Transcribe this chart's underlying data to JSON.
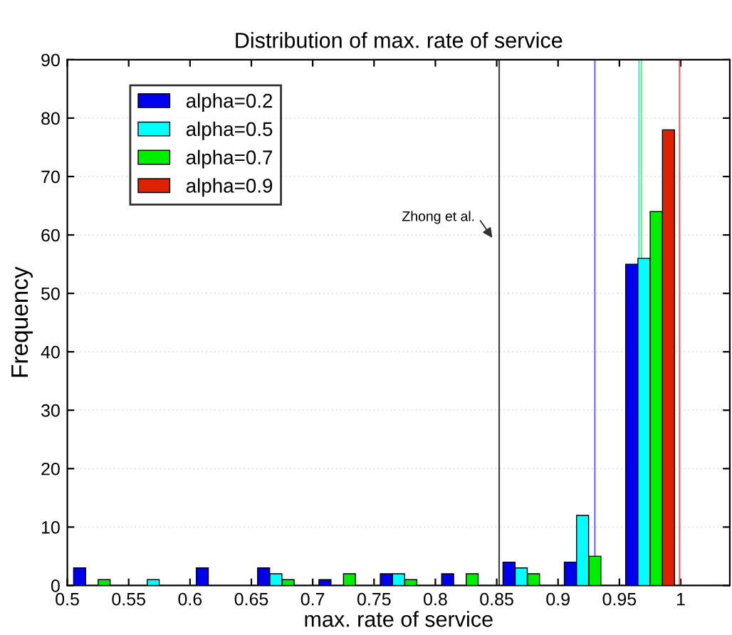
{
  "chart_data": {
    "type": "bar",
    "title": "Distribution of max. rate of service",
    "xlabel": "max. rate of service",
    "ylabel": "Frequency",
    "series": [
      {
        "name": "alpha=0.2",
        "color": "#0000ee",
        "x": [
          0.51,
          0.61,
          0.66,
          0.71,
          0.76,
          0.81,
          0.86,
          0.91,
          0.96
        ],
        "values": [
          3,
          3,
          3,
          1,
          2,
          2,
          4,
          4,
          55
        ]
      },
      {
        "name": "alpha=0.5",
        "color": "#00ffff",
        "x": [
          0.57,
          0.67,
          0.77,
          0.87,
          0.92,
          0.97
        ],
        "values": [
          1,
          2,
          2,
          3,
          12,
          56
        ]
      },
      {
        "name": "alpha=0.7",
        "color": "#00ee00",
        "x": [
          0.53,
          0.68,
          0.73,
          0.78,
          0.83,
          0.88,
          0.93,
          0.98
        ],
        "values": [
          1,
          1,
          2,
          1,
          2,
          2,
          5,
          64
        ]
      },
      {
        "name": "alpha=0.9",
        "color": "#dd2200",
        "x": [
          0.99
        ],
        "values": [
          78
        ]
      }
    ],
    "ref_lines": [
      {
        "axis": "x",
        "value": 0.852,
        "color": "#444444"
      },
      {
        "axis": "x",
        "value": 0.93,
        "color": "#7070ff"
      },
      {
        "axis": "x",
        "value": 0.966,
        "color": "#60e0e0"
      },
      {
        "axis": "x",
        "value": 0.968,
        "color": "#60ff60"
      },
      {
        "axis": "x",
        "value": 0.999,
        "color": "#ff6060"
      }
    ],
    "annotations": [
      "Zhong et al."
    ],
    "xlim": [
      0.5,
      1.04
    ],
    "xticks": [
      0.5,
      0.55,
      0.6,
      0.65,
      0.7,
      0.75,
      0.8,
      0.85,
      0.9,
      0.95,
      1
    ],
    "ylim": [
      0,
      90
    ],
    "yticks": [
      0,
      10,
      20,
      30,
      40,
      50,
      60,
      70,
      80,
      90
    ],
    "grid": "y",
    "legend": "top left"
  }
}
